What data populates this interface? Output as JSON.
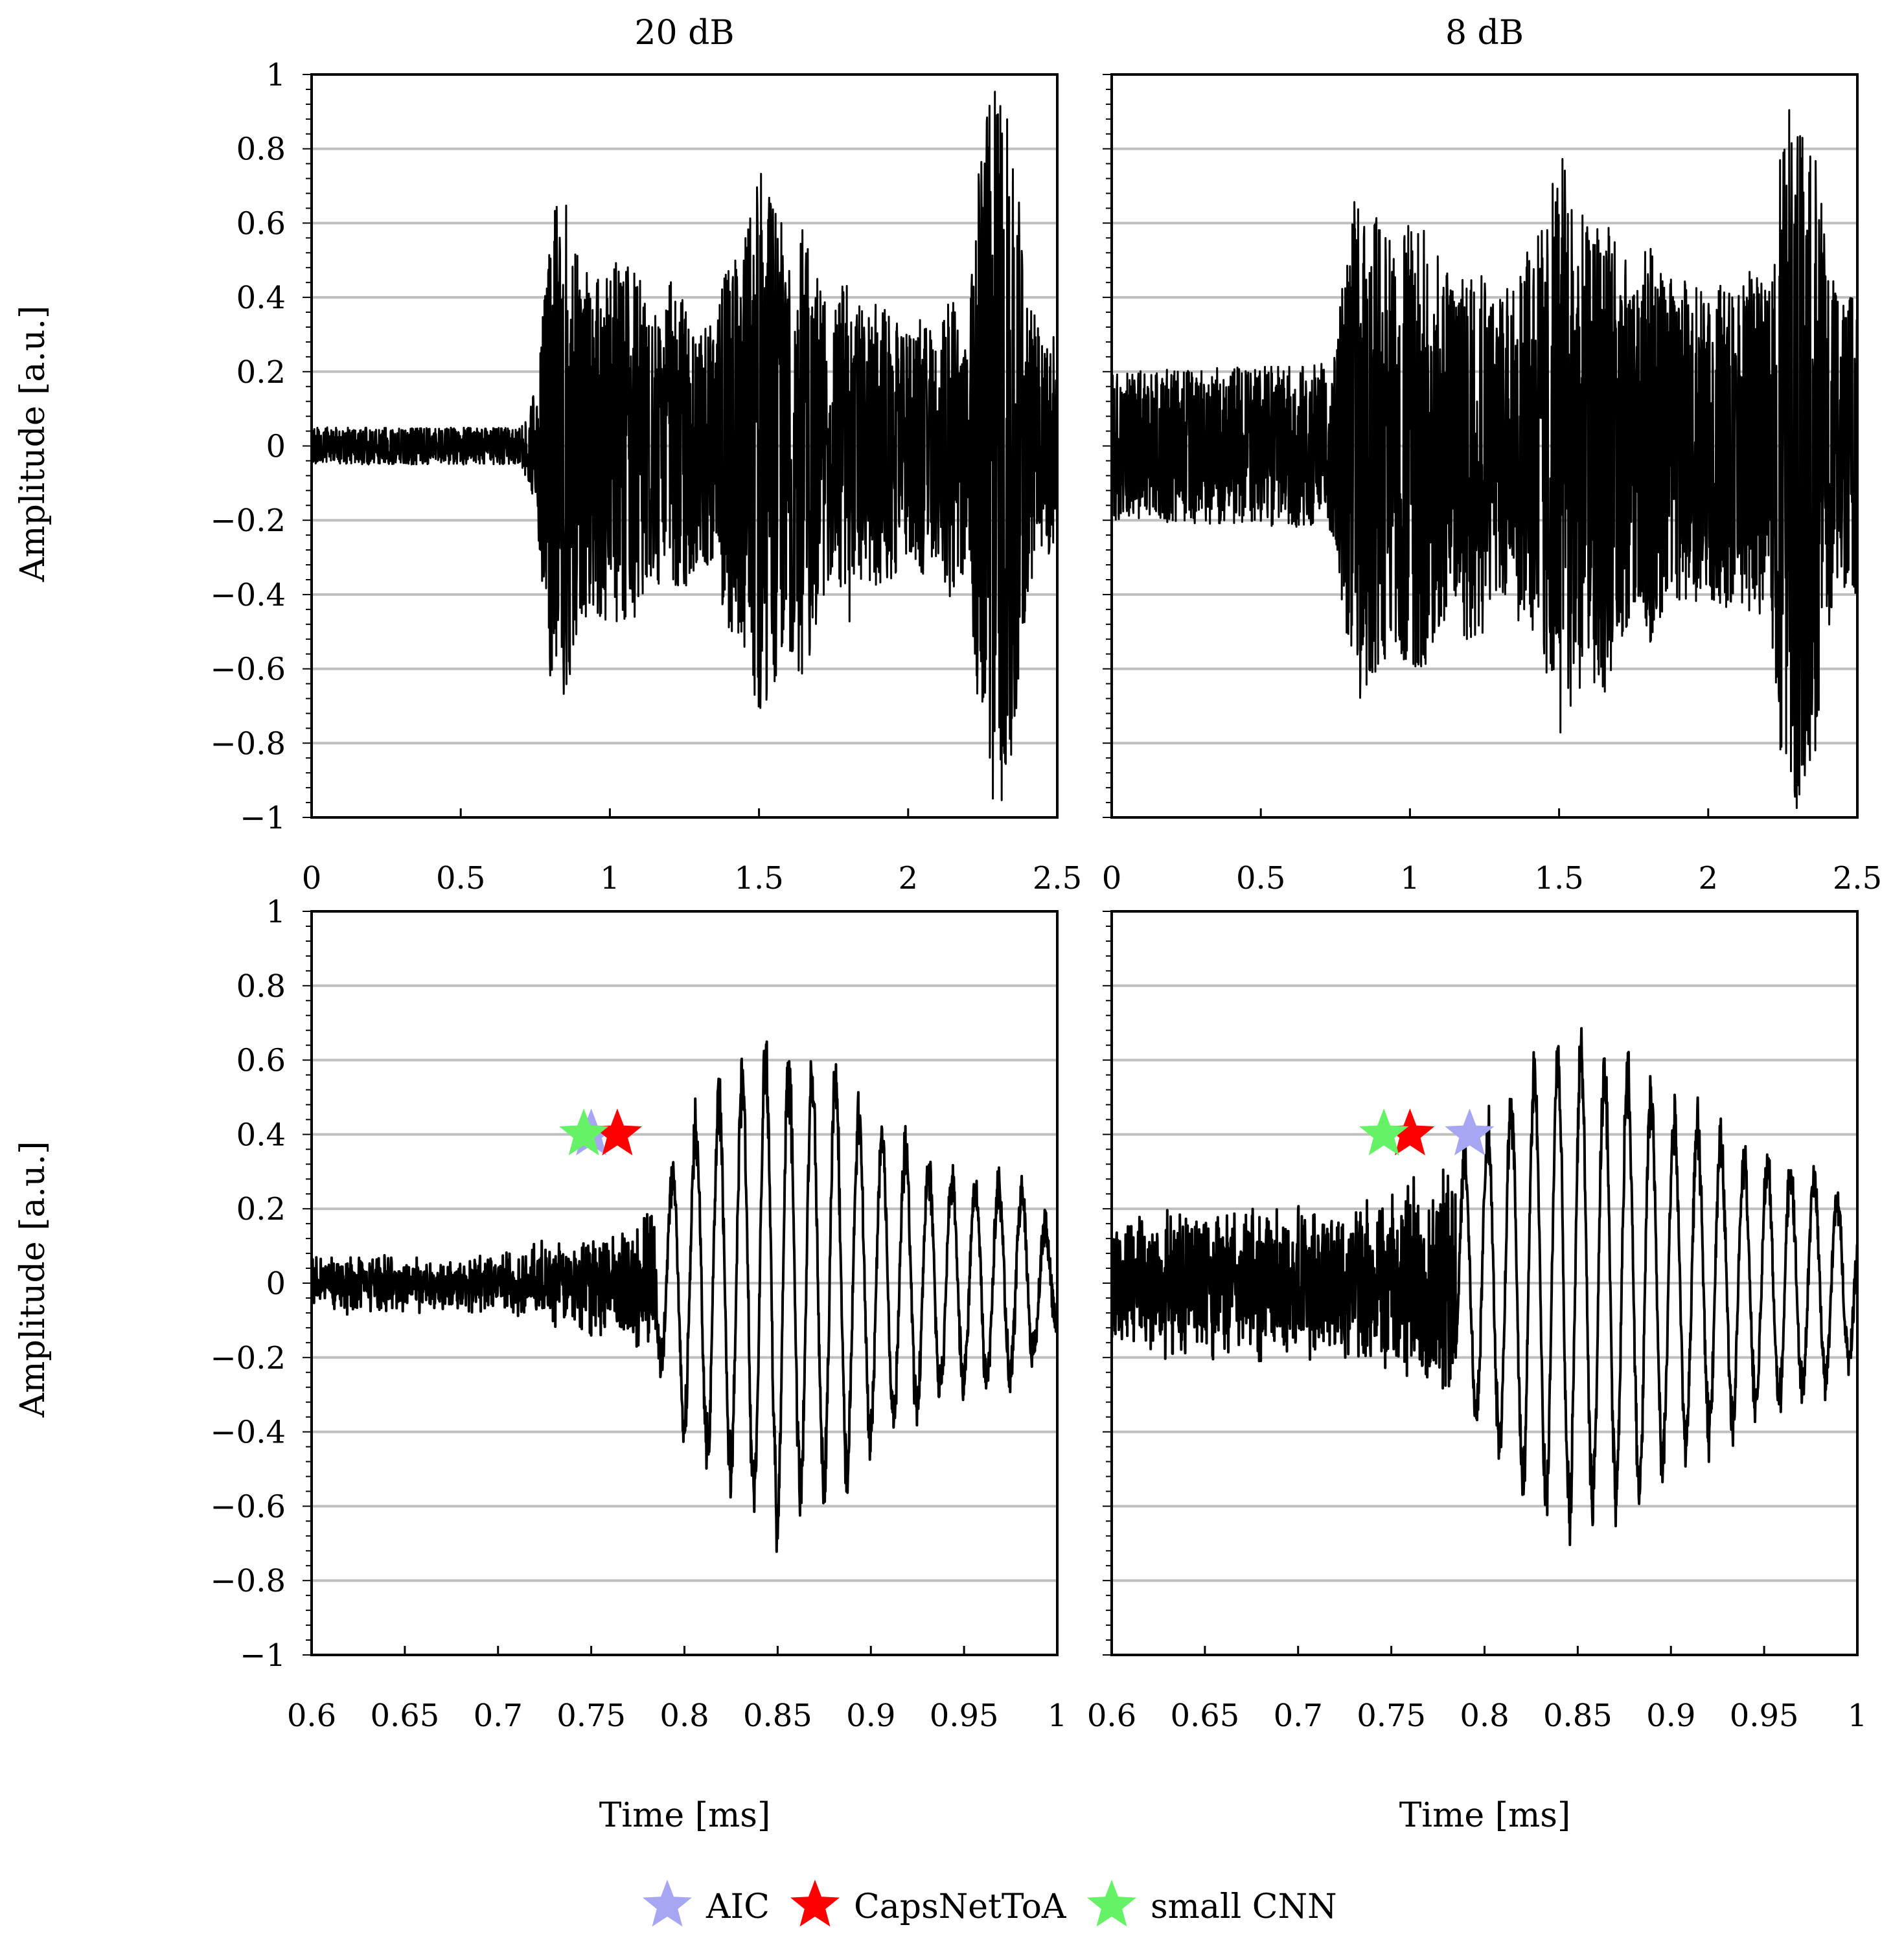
{
  "figure": {
    "y_axis_label": "Amplitude [a.u.]",
    "x_axis_label": "Time [ms]"
  },
  "legend": [
    {
      "label": "AIC",
      "color": "#a6a6f2",
      "marker": "star"
    },
    {
      "label": "CapsNetToA",
      "color": "#ff0000",
      "marker": "star"
    },
    {
      "label": "small CNN",
      "color": "#66f266",
      "marker": "star"
    }
  ],
  "chart_data": [
    {
      "type": "line",
      "title": "20 dB",
      "xlabel": "",
      "ylabel": "Amplitude [a.u.]",
      "xlim": [
        0,
        2.5
      ],
      "ylim": [
        -1,
        1
      ],
      "xticks": [
        "0",
        "0.5",
        "1",
        "1.5",
        "2",
        "2.5"
      ],
      "yticks": [
        "−1",
        "−0.8",
        "−0.6",
        "−0.4",
        "−0.2",
        "0",
        "0.2",
        "0.4",
        "0.6",
        "0.8",
        "1"
      ],
      "grid": "horizontal",
      "series": [
        {
          "color": "#000000",
          "envelope": {
            "x": [
              0,
              0.7,
              0.75,
              0.8,
              0.85,
              0.9,
              0.95,
              1.0,
              1.05,
              1.1,
              1.15,
              1.2,
              1.25,
              1.3,
              1.35,
              1.4,
              1.45,
              1.5,
              1.55,
              1.6,
              1.65,
              1.7,
              1.75,
              1.8,
              1.85,
              1.9,
              1.95,
              2.0,
              2.05,
              2.1,
              2.15,
              2.2,
              2.25,
              2.3,
              2.35,
              2.4,
              2.45,
              2.5
            ],
            "amplitude": [
              0.05,
              0.05,
              0.15,
              0.62,
              0.68,
              0.5,
              0.45,
              0.5,
              0.5,
              0.45,
              0.35,
              0.45,
              0.4,
              0.3,
              0.35,
              0.5,
              0.55,
              0.75,
              0.65,
              0.55,
              0.65,
              0.45,
              0.35,
              0.5,
              0.35,
              0.4,
              0.35,
              0.3,
              0.35,
              0.3,
              0.45,
              0.3,
              0.9,
              1.0,
              0.85,
              0.4,
              0.3,
              0.3
            ]
          }
        }
      ]
    },
    {
      "type": "line",
      "title": "8 dB",
      "xlabel": "",
      "ylabel": "",
      "xlim": [
        0,
        2.5
      ],
      "ylim": [
        -1,
        1
      ],
      "xticks": [
        "0",
        "0.5",
        "1",
        "1.5",
        "2",
        "2.5"
      ],
      "yticks": [],
      "grid": "horizontal",
      "series": [
        {
          "color": "#000000",
          "envelope": {
            "x": [
              0,
              0.7,
              0.75,
              0.8,
              0.85,
              0.9,
              0.95,
              1.0,
              1.05,
              1.1,
              1.15,
              1.2,
              1.25,
              1.3,
              1.35,
              1.4,
              1.45,
              1.5,
              1.55,
              1.6,
              1.65,
              1.7,
              1.75,
              1.8,
              1.85,
              1.9,
              1.95,
              2.0,
              2.05,
              2.1,
              2.15,
              2.2,
              2.25,
              2.3,
              2.35,
              2.4,
              2.45,
              2.5
            ],
            "amplitude": [
              0.2,
              0.22,
              0.25,
              0.65,
              0.7,
              0.6,
              0.55,
              0.6,
              0.6,
              0.5,
              0.45,
              0.55,
              0.5,
              0.4,
              0.45,
              0.55,
              0.6,
              0.8,
              0.7,
              0.6,
              0.7,
              0.55,
              0.45,
              0.55,
              0.45,
              0.45,
              0.45,
              0.4,
              0.45,
              0.4,
              0.5,
              0.4,
              0.9,
              1.0,
              0.9,
              0.5,
              0.4,
              0.4
            ]
          }
        }
      ]
    },
    {
      "type": "line",
      "title": "",
      "xlabel": "Time [ms]",
      "ylabel": "Amplitude [a.u.]",
      "xlim": [
        0.6,
        1.0
      ],
      "ylim": [
        -1,
        1
      ],
      "xticks": [
        "0.6",
        "0.65",
        "0.7",
        "0.75",
        "0.8",
        "0.85",
        "0.9",
        "0.95",
        "1"
      ],
      "yticks": [
        "−1",
        "−0.8",
        "−0.6",
        "−0.4",
        "−0.2",
        "0",
        "0.2",
        "0.4",
        "0.6",
        "0.8",
        "1"
      ],
      "grid": "horizontal",
      "series": [
        {
          "color": "#000000",
          "envelope": {
            "x": [
              0.6,
              0.7,
              0.72,
              0.75,
              0.77,
              0.785,
              0.8,
              0.82,
              0.84,
              0.85,
              0.86,
              0.88,
              0.9,
              0.92,
              0.94,
              0.96,
              0.98,
              1.0
            ],
            "amplitude": [
              0.05,
              0.05,
              0.08,
              0.12,
              0.15,
              0.2,
              0.45,
              0.55,
              0.68,
              0.7,
              0.62,
              0.62,
              0.45,
              0.4,
              0.32,
              0.3,
              0.28,
              0.12
            ]
          },
          "oscillation_period_ms": 0.0125
        }
      ],
      "markers": [
        {
          "series": "AIC",
          "x": 0.75,
          "y": 0.4
        },
        {
          "series": "CapsNetToA",
          "x": 0.764,
          "y": 0.4
        },
        {
          "series": "small CNN",
          "x": 0.746,
          "y": 0.4
        }
      ]
    },
    {
      "type": "line",
      "title": "",
      "xlabel": "Time [ms]",
      "ylabel": "",
      "xlim": [
        0.6,
        1.0
      ],
      "ylim": [
        -1,
        1
      ],
      "xticks": [
        "0.6",
        "0.65",
        "0.7",
        "0.75",
        "0.8",
        "0.85",
        "0.9",
        "0.95",
        "1"
      ],
      "yticks": [],
      "grid": "horizontal",
      "series": [
        {
          "color": "#000000",
          "envelope": {
            "x": [
              0.6,
              0.7,
              0.74,
              0.76,
              0.78,
              0.79,
              0.8,
              0.82,
              0.84,
              0.85,
              0.86,
              0.88,
              0.9,
              0.92,
              0.94,
              0.96,
              0.98,
              1.0
            ],
            "amplitude": [
              0.18,
              0.2,
              0.22,
              0.28,
              0.3,
              0.38,
              0.45,
              0.6,
              0.68,
              0.7,
              0.65,
              0.65,
              0.5,
              0.45,
              0.38,
              0.35,
              0.3,
              0.2
            ]
          },
          "oscillation_period_ms": 0.0125
        }
      ],
      "markers": [
        {
          "series": "AIC",
          "x": 0.792,
          "y": 0.4
        },
        {
          "series": "CapsNetToA",
          "x": 0.76,
          "y": 0.4
        },
        {
          "series": "small CNN",
          "x": 0.746,
          "y": 0.4
        }
      ]
    }
  ]
}
